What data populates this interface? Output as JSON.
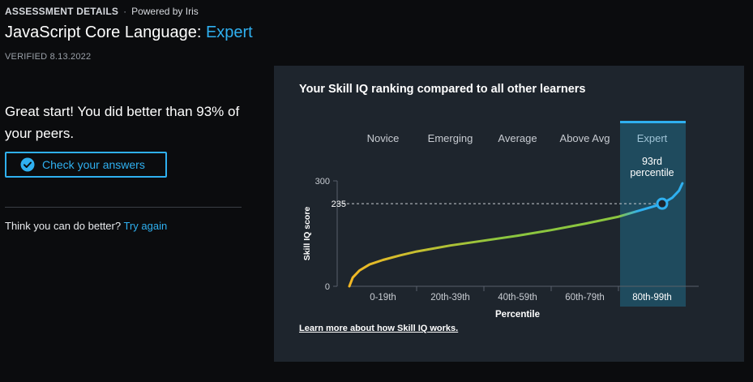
{
  "header": {
    "section": "ASSESSMENT DETAILS",
    "powered_by": "Powered by Iris",
    "title_prefix": "JavaScript Core Language:",
    "title_level": "Expert",
    "verified": "VERIFIED 8.13.2022"
  },
  "result": {
    "message": "Great start! You did better than 93% of your peers.",
    "check_button": "Check your answers",
    "retry_prompt": "Think you can do better?",
    "retry_link": "Try again"
  },
  "panel": {
    "title": "Your Skill IQ ranking compared to all other learners",
    "learn_more": "Learn more about how Skill IQ works."
  },
  "colors": {
    "accent": "#2fb0f0",
    "panel_bg": "#1e252d",
    "highlight_bg": "#1f4b5e",
    "curve_start": "#f4b824",
    "curve_mid": "#8cc63f",
    "curve_end": "#2fb0f0"
  },
  "icons": {
    "check": "check-circle-icon"
  },
  "chart_data": {
    "type": "line",
    "ylabel": "Skill IQ score",
    "xlabel": "Percentile",
    "ylim": [
      0,
      300
    ],
    "y_ticks": [
      "300",
      "0"
    ],
    "levels": [
      "Novice",
      "Emerging",
      "Average",
      "Above Avg",
      "Expert"
    ],
    "categories": [
      "0-19th",
      "20th-39th",
      "40th-59th",
      "60th-79th",
      "80th-99th"
    ],
    "highlighted_category": "80th-99th",
    "marker": {
      "percentile": 93,
      "score": 235,
      "score_label": "235",
      "label_line1": "93rd",
      "label_line2": "percentile"
    },
    "curve": {
      "x": [
        0,
        1,
        3,
        6,
        10,
        15,
        20,
        30,
        40,
        50,
        60,
        70,
        80,
        85,
        90,
        93,
        96,
        98,
        99
      ],
      "y": [
        0,
        25,
        45,
        62,
        75,
        88,
        99,
        116,
        130,
        144,
        160,
        178,
        198,
        212,
        226,
        235,
        252,
        272,
        293
      ]
    }
  }
}
